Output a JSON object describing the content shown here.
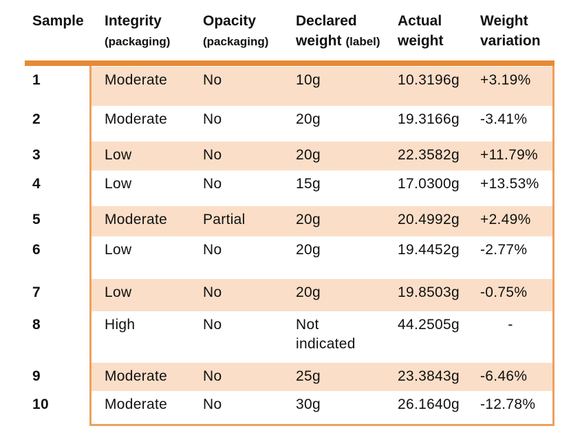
{
  "table": {
    "columns": [
      {
        "top": "Sample",
        "bottom": "",
        "note": ""
      },
      {
        "top": "Integrity",
        "bottom": "",
        "note": "(packaging)"
      },
      {
        "top": "Opacity",
        "bottom": "",
        "note": "(packaging)"
      },
      {
        "top": "Declared",
        "bottom": "weight",
        "note": "(label)"
      },
      {
        "top": "Actual",
        "bottom": "weight",
        "note": ""
      },
      {
        "top": "Weight",
        "bottom": "variation",
        "note": ""
      }
    ],
    "rows": [
      {
        "sample": "1",
        "integrity": "Moderate",
        "opacity": "No",
        "declared": "10g",
        "actual": "10.3196g",
        "variation": "+3.19%"
      },
      {
        "sample": "2",
        "integrity": "Moderate",
        "opacity": "No",
        "declared": "20g",
        "actual": "19.3166g",
        "variation": "-3.41%"
      },
      {
        "sample": "3",
        "integrity": "Low",
        "opacity": "No",
        "declared": "20g",
        "actual": "22.3582g",
        "variation": "+11.79%"
      },
      {
        "sample": "4",
        "integrity": "Low",
        "opacity": "No",
        "declared": "15g",
        "actual": "17.0300g",
        "variation": "+13.53%"
      },
      {
        "sample": "5",
        "integrity": "Moderate",
        "opacity": "Partial",
        "declared": "20g",
        "actual": "20.4992g",
        "variation": "+2.49%"
      },
      {
        "sample": "6",
        "integrity": "Low",
        "opacity": "No",
        "declared": "20g",
        "actual": "19.4452g",
        "variation": "-2.77%"
      },
      {
        "sample": "7",
        "integrity": "Low",
        "opacity": "No",
        "declared": "20g",
        "actual": "19.8503g",
        "variation": "-0.75%"
      },
      {
        "sample": "8",
        "integrity": "High",
        "opacity": "No",
        "declared": "Not indicated",
        "actual": "44.2505g",
        "variation": "-"
      },
      {
        "sample": "9",
        "integrity": "Moderate",
        "opacity": "No",
        "declared": "25g",
        "actual": "23.3843g",
        "variation": "-6.46%"
      },
      {
        "sample": "10",
        "integrity": "Moderate",
        "opacity": "No",
        "declared": "30g",
        "actual": "26.1640g",
        "variation": "-12.78%"
      }
    ],
    "colors": {
      "accent_bar": "#E78B36",
      "border": "#ECA15E",
      "row_shade": "#FBDEC7"
    }
  }
}
